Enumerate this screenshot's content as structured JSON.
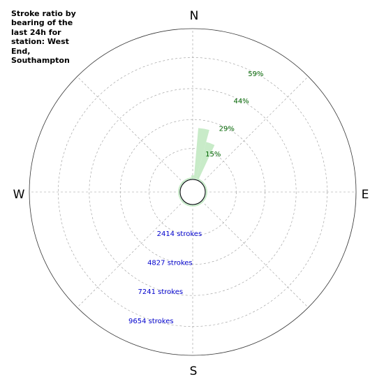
{
  "title": "Stroke ratio by bearing of the last 24h for station: West End, Southampton",
  "compass": {
    "n": "N",
    "e": "E",
    "s": "S",
    "w": "W"
  },
  "ratio_ring_labels": [
    "15%",
    "29%",
    "44%",
    "59%"
  ],
  "count_ring_labels": [
    "2414 strokes",
    "4827 strokes",
    "7241 strokes",
    "9654 strokes"
  ],
  "colors": {
    "ratio_fill": "#c8ebc8",
    "count_line": "#8a8ae6",
    "ratio_label": "#006400",
    "count_label": "#0000cd",
    "grid": "#999999"
  },
  "chart_data": {
    "type": "polar",
    "title": "Stroke ratio by bearing of the last 24h for station: West End, Southampton",
    "bearing_step_deg": 10,
    "bearings_deg": [
      0,
      10,
      20,
      30,
      40,
      50,
      60,
      70,
      80,
      90,
      100,
      110,
      120,
      130,
      140,
      150,
      160,
      170,
      180,
      190,
      200,
      210,
      220,
      230,
      240,
      250,
      260,
      270,
      280,
      290,
      300,
      310,
      320,
      330,
      340,
      350
    ],
    "ratio_series": {
      "name": "Stroke ratio",
      "unit": "%",
      "rmax": 73,
      "values": [
        2,
        25,
        19,
        1,
        1,
        1,
        1,
        1,
        1,
        1,
        1,
        1,
        1,
        1,
        1,
        1,
        1,
        1,
        1,
        1,
        1,
        1,
        1,
        1,
        1,
        1,
        1,
        1,
        1,
        1,
        1,
        1,
        1,
        1,
        1,
        1
      ]
    },
    "count_series": {
      "name": "Strokes",
      "unit": "strokes",
      "rmax": 11900,
      "values": [
        0,
        0,
        0,
        0,
        0,
        0,
        0,
        0,
        0,
        0,
        0,
        0,
        0,
        0,
        0,
        0,
        0,
        0,
        0,
        0,
        0,
        0,
        0,
        0,
        0,
        0,
        0,
        0,
        0,
        0,
        0,
        0,
        0,
        0,
        0,
        0
      ]
    },
    "ratio_ring_values": [
      15,
      29,
      44,
      59
    ],
    "count_ring_values": [
      2414,
      4827,
      7241,
      9654
    ],
    "grid": true,
    "direction": "clockwise",
    "zero_location": "N"
  }
}
